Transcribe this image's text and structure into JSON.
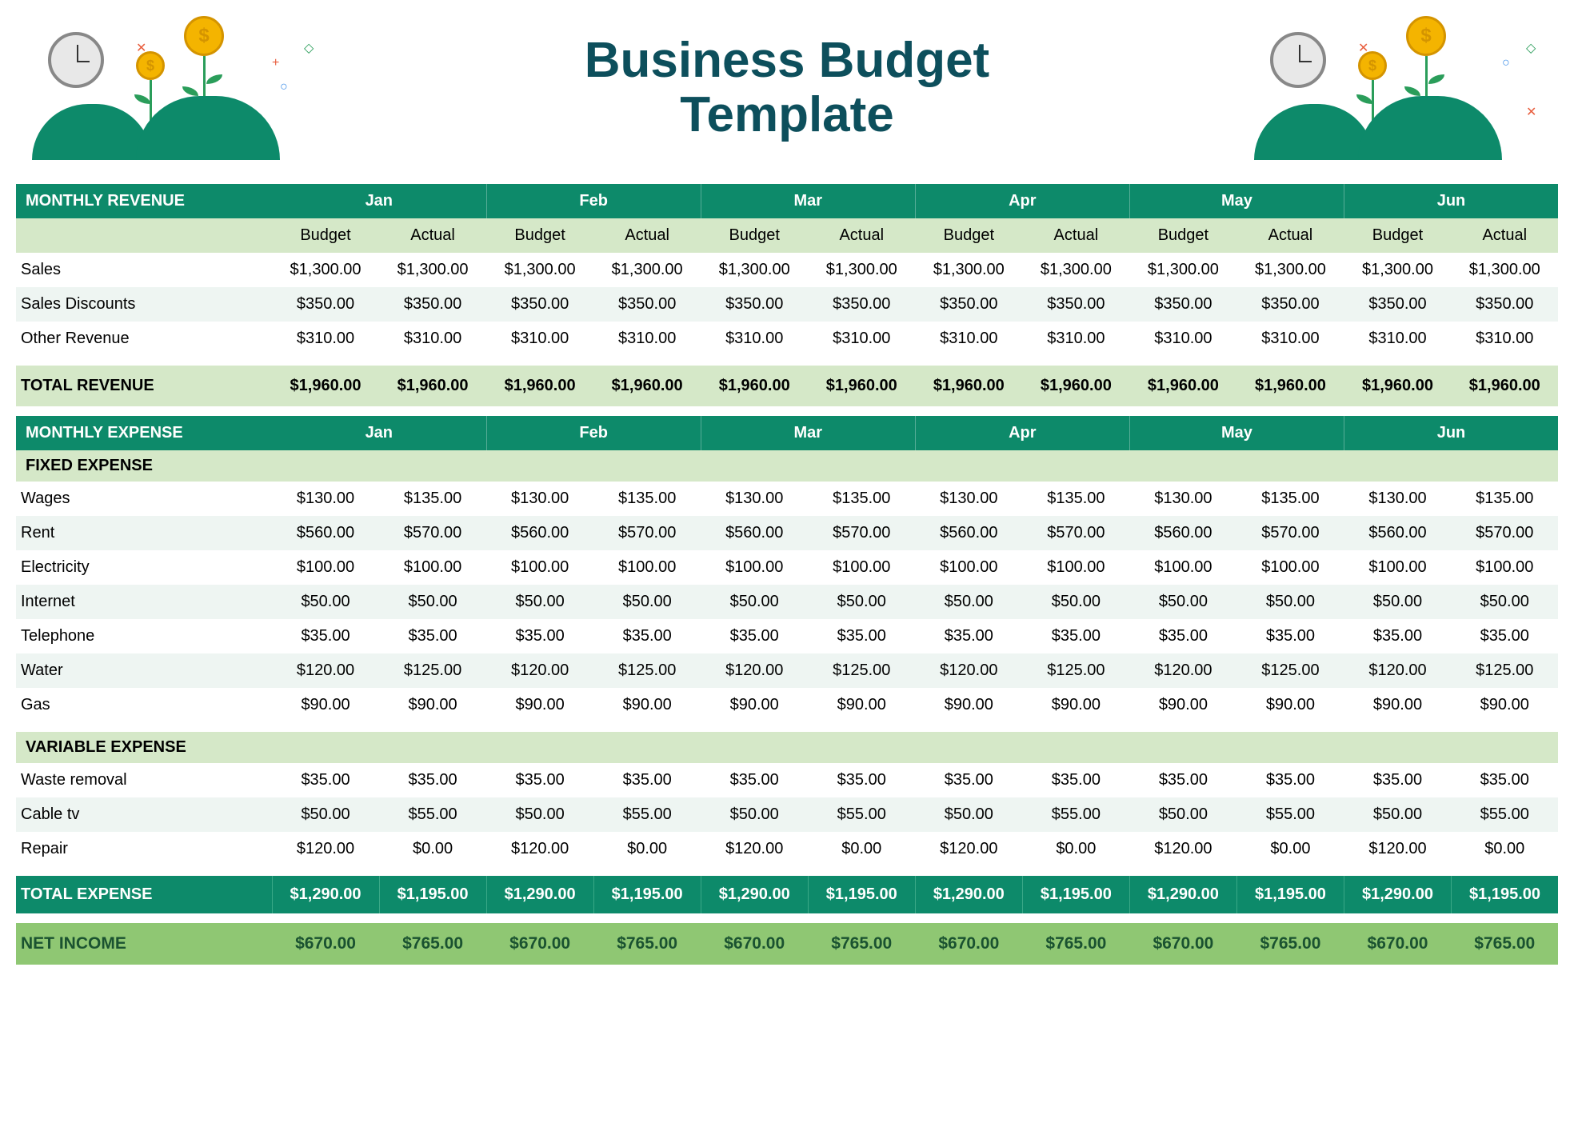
{
  "title_line1": "Business Budget",
  "title_line2": "Template",
  "colors": {
    "header_bg": "#0d8a6a",
    "header_text": "#ffffff",
    "subheader_bg": "#d5e8c8",
    "row_even": "#ffffff",
    "row_odd": "#eef5f2",
    "net_bg": "#8fc773",
    "net_text": "#1a5230",
    "title_color": "#0d4f5c"
  },
  "months": [
    "Jan",
    "Feb",
    "Mar",
    "Apr",
    "May",
    "Jun"
  ],
  "sub_columns": [
    "Budget",
    "Actual"
  ],
  "revenue": {
    "section_label": "MONTHLY REVENUE",
    "rows": [
      {
        "label": "Sales",
        "values": [
          "$1,300.00",
          "$1,300.00",
          "$1,300.00",
          "$1,300.00",
          "$1,300.00",
          "$1,300.00",
          "$1,300.00",
          "$1,300.00",
          "$1,300.00",
          "$1,300.00",
          "$1,300.00",
          "$1,300.00"
        ]
      },
      {
        "label": "Sales Discounts",
        "values": [
          "$350.00",
          "$350.00",
          "$350.00",
          "$350.00",
          "$350.00",
          "$350.00",
          "$350.00",
          "$350.00",
          "$350.00",
          "$350.00",
          "$350.00",
          "$350.00"
        ]
      },
      {
        "label": "Other Revenue",
        "values": [
          "$310.00",
          "$310.00",
          "$310.00",
          "$310.00",
          "$310.00",
          "$310.00",
          "$310.00",
          "$310.00",
          "$310.00",
          "$310.00",
          "$310.00",
          "$310.00"
        ]
      }
    ],
    "total_label": "TOTAL REVENUE",
    "total_values": [
      "$1,960.00",
      "$1,960.00",
      "$1,960.00",
      "$1,960.00",
      "$1,960.00",
      "$1,960.00",
      "$1,960.00",
      "$1,960.00",
      "$1,960.00",
      "$1,960.00",
      "$1,960.00",
      "$1,960.00"
    ]
  },
  "expense": {
    "section_label": "MONTHLY EXPENSE",
    "fixed_label": "FIXED EXPENSE",
    "fixed_rows": [
      {
        "label": "Wages",
        "values": [
          "$130.00",
          "$135.00",
          "$130.00",
          "$135.00",
          "$130.00",
          "$135.00",
          "$130.00",
          "$135.00",
          "$130.00",
          "$135.00",
          "$130.00",
          "$135.00"
        ]
      },
      {
        "label": "Rent",
        "values": [
          "$560.00",
          "$570.00",
          "$560.00",
          "$570.00",
          "$560.00",
          "$570.00",
          "$560.00",
          "$570.00",
          "$560.00",
          "$570.00",
          "$560.00",
          "$570.00"
        ]
      },
      {
        "label": "Electricity",
        "values": [
          "$100.00",
          "$100.00",
          "$100.00",
          "$100.00",
          "$100.00",
          "$100.00",
          "$100.00",
          "$100.00",
          "$100.00",
          "$100.00",
          "$100.00",
          "$100.00"
        ]
      },
      {
        "label": "Internet",
        "values": [
          "$50.00",
          "$50.00",
          "$50.00",
          "$50.00",
          "$50.00",
          "$50.00",
          "$50.00",
          "$50.00",
          "$50.00",
          "$50.00",
          "$50.00",
          "$50.00"
        ]
      },
      {
        "label": "Telephone",
        "values": [
          "$35.00",
          "$35.00",
          "$35.00",
          "$35.00",
          "$35.00",
          "$35.00",
          "$35.00",
          "$35.00",
          "$35.00",
          "$35.00",
          "$35.00",
          "$35.00"
        ]
      },
      {
        "label": "Water",
        "values": [
          "$120.00",
          "$125.00",
          "$120.00",
          "$125.00",
          "$120.00",
          "$125.00",
          "$120.00",
          "$125.00",
          "$120.00",
          "$125.00",
          "$120.00",
          "$125.00"
        ]
      },
      {
        "label": "Gas",
        "values": [
          "$90.00",
          "$90.00",
          "$90.00",
          "$90.00",
          "$90.00",
          "$90.00",
          "$90.00",
          "$90.00",
          "$90.00",
          "$90.00",
          "$90.00",
          "$90.00"
        ]
      }
    ],
    "variable_label": "VARIABLE EXPENSE",
    "variable_rows": [
      {
        "label": "Waste removal",
        "values": [
          "$35.00",
          "$35.00",
          "$35.00",
          "$35.00",
          "$35.00",
          "$35.00",
          "$35.00",
          "$35.00",
          "$35.00",
          "$35.00",
          "$35.00",
          "$35.00"
        ]
      },
      {
        "label": "Cable tv",
        "values": [
          "$50.00",
          "$55.00",
          "$50.00",
          "$55.00",
          "$50.00",
          "$55.00",
          "$50.00",
          "$55.00",
          "$50.00",
          "$55.00",
          "$50.00",
          "$55.00"
        ]
      },
      {
        "label": "Repair",
        "values": [
          "$120.00",
          "$0.00",
          "$120.00",
          "$0.00",
          "$120.00",
          "$0.00",
          "$120.00",
          "$0.00",
          "$120.00",
          "$0.00",
          "$120.00",
          "$0.00"
        ]
      }
    ],
    "total_label": "TOTAL EXPENSE",
    "total_values": [
      "$1,290.00",
      "$1,195.00",
      "$1,290.00",
      "$1,195.00",
      "$1,290.00",
      "$1,195.00",
      "$1,290.00",
      "$1,195.00",
      "$1,290.00",
      "$1,195.00",
      "$1,290.00",
      "$1,195.00"
    ]
  },
  "net": {
    "label": "NET INCOME",
    "values": [
      "$670.00",
      "$765.00",
      "$670.00",
      "$765.00",
      "$670.00",
      "$765.00",
      "$670.00",
      "$765.00",
      "$670.00",
      "$765.00",
      "$670.00",
      "$765.00"
    ]
  }
}
